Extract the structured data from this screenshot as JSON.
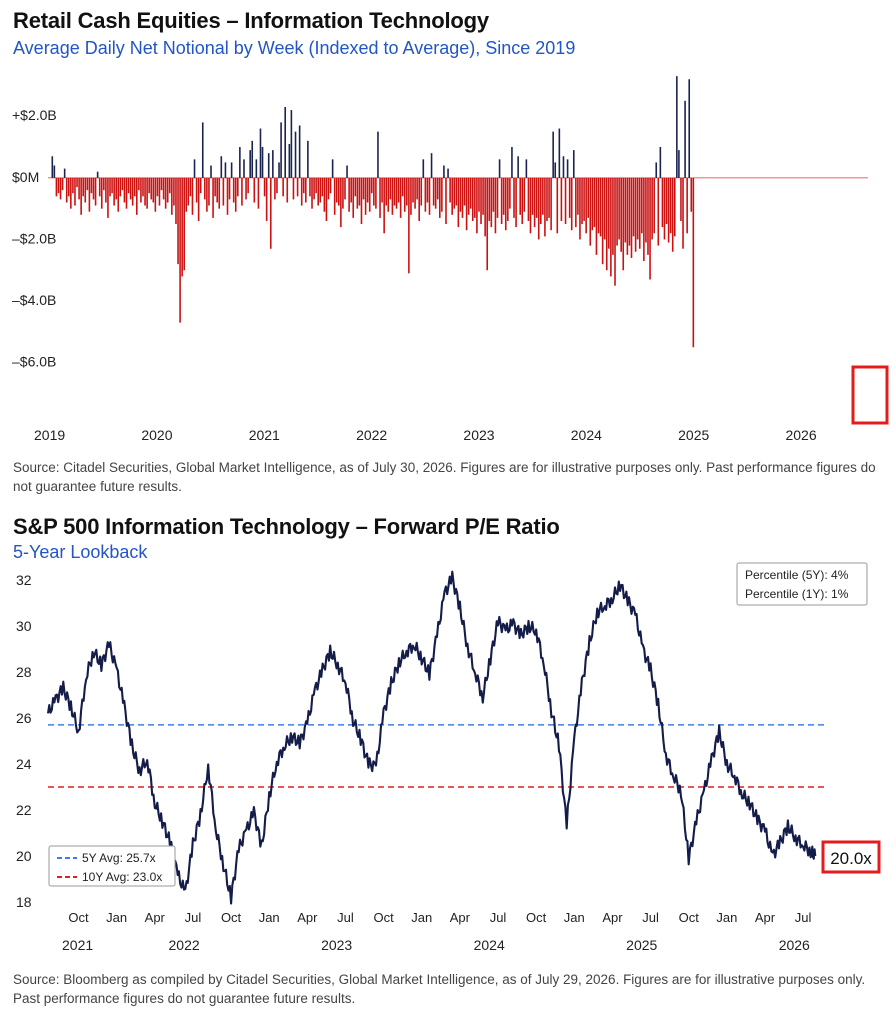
{
  "chart_data": [
    {
      "type": "bar",
      "title": "Retail Cash Equities – Information Technology",
      "subtitle": "Average Daily Net Notional by Week (Indexed to Average), Since 2019",
      "y_tick_labels": [
        "+$2.0B",
        "$0M",
        "–$2.0B",
        "–$4.0B",
        "–$6.0B"
      ],
      "y_tick_values": [
        2,
        0,
        -2,
        -4,
        -6
      ],
      "x_tick_labels": [
        "2019",
        "2020",
        "2021",
        "2022",
        "2023",
        "2024",
        "2025",
        "2026"
      ],
      "ylim": [
        -7.6,
        3.5
      ],
      "xlim": [
        2019.0,
        2026.75
      ],
      "unit": "$B",
      "positive_color": "#1b2350",
      "negative_color": "#cc1111",
      "highlight_color": "#e51c1c",
      "series": [
        {
          "x_start": 2019.04,
          "step": 0.0192,
          "values": [
            0.7,
            0.4,
            -0.6,
            -0.5,
            -0.7,
            -0.4,
            0.3,
            -0.8,
            -0.6,
            -1.0,
            -0.5,
            -0.9,
            -0.3,
            -0.7,
            -1.2,
            -0.6,
            -0.8,
            -0.4,
            -1.1,
            -0.5,
            -0.7,
            -0.9,
            0.2,
            -0.6,
            -1.0,
            -0.4,
            -0.8,
            -1.3,
            -0.6,
            -0.5,
            -0.9,
            -0.7,
            -1.1,
            -0.6,
            -0.4,
            -0.8,
            -1.0,
            -0.5,
            -0.7,
            -0.9,
            -0.6,
            -1.2,
            -0.4,
            -0.8,
            -0.6,
            -0.9,
            -1.0,
            -0.5,
            -0.7,
            -0.8,
            -1.1,
            -0.6,
            -0.9,
            -0.4,
            -0.7,
            -1.0,
            -0.8,
            -0.5,
            -1.2,
            -0.9,
            -1.5,
            -2.8,
            -4.7,
            -3.2,
            -3.0,
            -1.1,
            -0.9,
            -0.6,
            -1.2,
            0.6,
            -0.8,
            -1.4,
            -0.5,
            1.8,
            -0.7,
            -1.1,
            -0.9,
            0.4,
            -1.3,
            -0.6,
            -0.8,
            -1.0,
            0.7,
            -0.9,
            0.5,
            -1.2,
            -0.7,
            0.5,
            -0.8,
            -1.1,
            -0.6,
            1.0,
            -0.9,
            0.6,
            -0.7,
            -0.5,
            0.9,
            1.2,
            -0.8,
            0.6,
            -1.0,
            1.6,
            1.0,
            -0.6,
            -1.4,
            0.8,
            -2.3,
            0.9,
            -0.7,
            -0.5,
            0.5,
            1.8,
            -0.6,
            2.3,
            -0.8,
            1.1,
            2.2,
            -0.7,
            1.5,
            -0.6,
            1.7,
            -0.9,
            -0.5,
            -0.8,
            1.2,
            -0.6,
            -1.0,
            -0.7,
            -0.5,
            -0.9,
            -0.8,
            -0.6,
            -1.1,
            -1.4,
            -0.7,
            -0.5,
            0.6,
            -1.2,
            -0.8,
            -0.9,
            -1.6,
            -1.0,
            -0.7,
            0.4,
            -1.1,
            -0.8,
            -1.3,
            -0.6,
            -1.0,
            -0.9,
            -1.5,
            -0.7,
            -1.2,
            -0.8,
            -1.1,
            -0.5,
            -0.9,
            -1.0,
            1.5,
            -1.3,
            -0.8,
            -1.8,
            -0.9,
            -1.1,
            -0.7,
            -1.2,
            -0.9,
            -1.0,
            -0.8,
            -1.3,
            -0.6,
            -1.1,
            -0.9,
            -3.1,
            -1.2,
            -0.8,
            -1.0,
            -0.7,
            -1.4,
            -0.9,
            0.6,
            -1.1,
            -0.8,
            -1.2,
            0.8,
            -0.9,
            -1.0,
            -0.7,
            -1.3,
            -1.1,
            0.4,
            -1.5,
            0.3,
            -0.8,
            -1.2,
            -1.0,
            -0.9,
            -1.6,
            -1.1,
            -1.3,
            -0.9,
            -1.7,
            -1.2,
            -1.0,
            -1.4,
            -1.3,
            -1.8,
            -1.1,
            -1.5,
            -1.2,
            -1.9,
            -3.0,
            -1.4,
            -1.6,
            -1.1,
            -1.8,
            -1.3,
            0.6,
            -1.5,
            -1.2,
            -1.7,
            -1.4,
            -1.0,
            1.0,
            -1.3,
            -1.6,
            0.7,
            -1.2,
            -1.5,
            -1.1,
            0.6,
            -1.4,
            -1.8,
            -1.2,
            -1.6,
            -1.3,
            -2.0,
            -1.5,
            -1.2,
            -1.9,
            -1.4,
            -1.3,
            -1.7,
            1.5,
            0.5,
            -1.8,
            1.6,
            -1.4,
            0.7,
            -1.5,
            0.6,
            -1.3,
            -1.7,
            0.9,
            -1.6,
            -1.2,
            -2.0,
            -1.5,
            -1.4,
            -1.8,
            -1.3,
            -2.2,
            -1.7,
            -1.6,
            -2.5,
            -1.8,
            -1.9,
            -2.8,
            -2.0,
            -3.0,
            -2.3,
            -3.2,
            -2.5,
            -3.5,
            -2.2,
            -2.0,
            -2.4,
            -3.0,
            -2.1,
            -2.5,
            -2.2,
            -2.6,
            -1.9,
            -2.4,
            -2.0,
            -2.3,
            -1.8,
            -2.7,
            -2.1,
            -2.5,
            -3.3,
            -2.0,
            -1.8,
            0.5,
            -2.2,
            1.0,
            -1.6,
            -2.0,
            -1.5,
            -2.1,
            -1.8,
            -2.4,
            -1.9,
            3.3,
            0.9,
            -1.4,
            -2.3,
            2.5,
            -1.8,
            3.2,
            -1.1,
            -5.5
          ]
        }
      ]
    },
    {
      "type": "line",
      "title": "S&P 500 Information Technology – Forward P/E Ratio",
      "subtitle": "5-Year Lookback",
      "y_tick_labels": [
        "32",
        "30",
        "28",
        "26",
        "24",
        "22",
        "20",
        "18"
      ],
      "y_tick_values": [
        32,
        30,
        28,
        26,
        24,
        22,
        20,
        18
      ],
      "ylim": [
        18,
        32
      ],
      "x_tick_labels": [
        "Oct",
        "Jan",
        "Apr",
        "Jul",
        "Oct",
        "Jan",
        "Apr",
        "Jul",
        "Oct",
        "Jan",
        "Apr",
        "Jul",
        "Oct",
        "Jan",
        "Apr",
        "Jul",
        "Oct",
        "Jan",
        "Apr",
        "Jul"
      ],
      "x_tick_values": [
        2021.75,
        2022.0,
        2022.25,
        2022.5,
        2022.75,
        2023.0,
        2023.25,
        2023.5,
        2023.75,
        2024.0,
        2024.25,
        2024.5,
        2024.75,
        2025.0,
        2025.25,
        2025.5,
        2025.75,
        2026.0,
        2026.25,
        2026.5
      ],
      "year_labels": [
        "2021",
        "2022",
        "2023",
        "2024",
        "2025",
        "2026"
      ],
      "year_values": [
        2021.55,
        2022.34,
        2023.34,
        2024.34,
        2025.34,
        2026.34
      ],
      "xlim": [
        2021.55,
        2026.65
      ],
      "line_color": "#141c4a",
      "series": [
        {
          "name": "Forward P/E",
          "x": [
            2021.55,
            2021.6,
            2021.65,
            2021.7,
            2021.75,
            2021.8,
            2021.85,
            2021.9,
            2021.95,
            2022.0,
            2022.05,
            2022.1,
            2022.15,
            2022.2,
            2022.25,
            2022.3,
            2022.35,
            2022.4,
            2022.45,
            2022.5,
            2022.55,
            2022.6,
            2022.65,
            2022.7,
            2022.75,
            2022.8,
            2022.85,
            2022.9,
            2022.95,
            2023.0,
            2023.05,
            2023.1,
            2023.15,
            2023.2,
            2023.25,
            2023.3,
            2023.35,
            2023.4,
            2023.45,
            2023.5,
            2023.55,
            2023.6,
            2023.65,
            2023.7,
            2023.75,
            2023.8,
            2023.85,
            2023.9,
            2023.95,
            2024.0,
            2024.05,
            2024.1,
            2024.15,
            2024.2,
            2024.25,
            2024.3,
            2024.35,
            2024.4,
            2024.45,
            2024.5,
            2024.55,
            2024.6,
            2024.65,
            2024.7,
            2024.75,
            2024.8,
            2024.85,
            2024.9,
            2024.95,
            2025.0,
            2025.05,
            2025.1,
            2025.15,
            2025.2,
            2025.25,
            2025.3,
            2025.35,
            2025.4,
            2025.45,
            2025.5,
            2025.55,
            2025.6,
            2025.65,
            2025.7,
            2025.75,
            2025.8,
            2025.85,
            2025.9,
            2025.95,
            2026.0,
            2026.05,
            2026.1,
            2026.15,
            2026.2,
            2026.25,
            2026.3,
            2026.35,
            2026.4,
            2026.45,
            2026.5,
            2026.55,
            2026.58
          ],
          "values": [
            26.2,
            26.8,
            27.3,
            26.5,
            25.4,
            27.8,
            28.9,
            28.3,
            29.2,
            28.1,
            26.5,
            24.8,
            23.7,
            24.2,
            22.3,
            21.5,
            20.6,
            19.2,
            18.4,
            20.5,
            21.8,
            23.9,
            21.2,
            19.6,
            18.2,
            20.3,
            21.1,
            21.9,
            20.4,
            22.6,
            24.1,
            24.8,
            25.2,
            24.9,
            25.8,
            27.2,
            28.1,
            28.9,
            28.3,
            27.6,
            25.9,
            25.1,
            24.0,
            23.9,
            26.2,
            27.5,
            28.4,
            28.9,
            29.2,
            28.6,
            27.9,
            29.6,
            31.4,
            32.1,
            30.8,
            29.1,
            28.0,
            26.9,
            28.6,
            30.2,
            29.8,
            30.1,
            29.6,
            30.0,
            29.8,
            28.4,
            26.3,
            24.8,
            21.3,
            25.1,
            27.5,
            29.3,
            30.6,
            30.9,
            31.2,
            31.8,
            31.1,
            30.5,
            29.0,
            28.1,
            26.6,
            24.4,
            23.5,
            22.8,
            19.9,
            21.5,
            22.8,
            24.2,
            25.4,
            24.0,
            23.5,
            22.7,
            22.3,
            21.6,
            21.1,
            20.0,
            20.6,
            21.3,
            20.8,
            20.5,
            20.2,
            20.0
          ],
          "end_label": "20.0x"
        },
        {
          "name": "5Y Avg: 25.7x",
          "value": 25.7,
          "color": "#3f7de6"
        },
        {
          "name": "10Y Avg: 23.0x",
          "value": 23.0,
          "color": "#dd2020"
        }
      ],
      "percentile_box": [
        "Percentile (5Y): 4%",
        "Percentile (1Y): 1%"
      ]
    }
  ],
  "source_top": "Source: Citadel Securities, Global Market Intelligence, as of July 30, 2026. Figures are for illustrative purposes only. Past performance figures do not guarantee future results.",
  "source_bottom": "Source: Bloomberg as compiled by Citadel Securities, Global Market Intelligence, as of July 29, 2026. Figures are for illustrative purposes only. Past performance figures do not guarantee future results."
}
